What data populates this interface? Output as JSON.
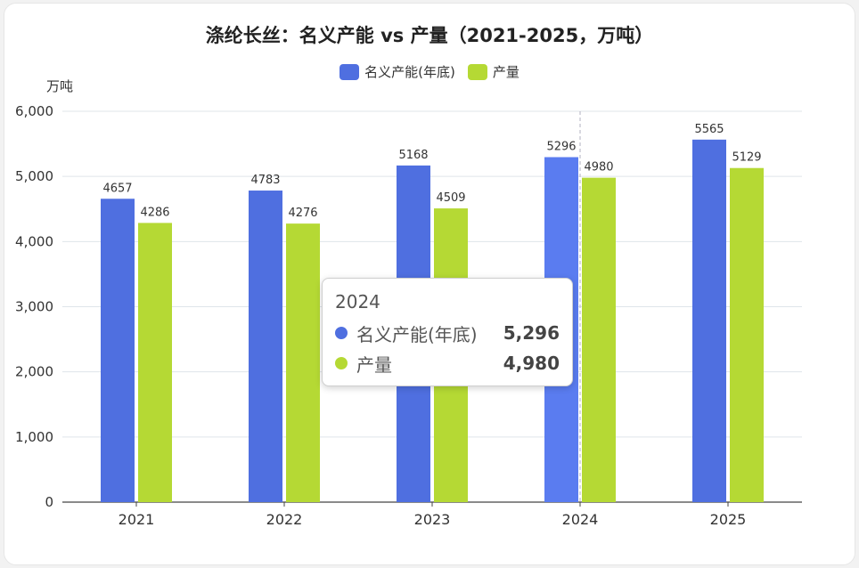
{
  "chart_data": {
    "type": "bar",
    "title": "涤纶长丝：名义产能 vs 产量（2021-2025，万吨）",
    "ylabel": "万吨",
    "categories": [
      "2021",
      "2022",
      "2023",
      "2024",
      "2025"
    ],
    "series": [
      {
        "name": "名义产能(年底)",
        "values": [
          4657,
          4783,
          5168,
          5296,
          5565
        ],
        "color": "#4f6fe0"
      },
      {
        "name": "产量",
        "values": [
          4286,
          4276,
          4509,
          4980,
          5129
        ],
        "color": "#b5d934"
      }
    ],
    "ylim": [
      0,
      6000
    ],
    "yticks": [
      "0",
      "1,000",
      "2,000",
      "3,000",
      "4,000",
      "5,000",
      "6,000"
    ],
    "grid": true,
    "legend": "top-center"
  },
  "tooltip": {
    "title": "2024",
    "rows": [
      {
        "name": "名义产能(年底)",
        "value": "5,296",
        "color": "#4f6fe0"
      },
      {
        "name": "产量",
        "value": "4,980",
        "color": "#b5d934"
      }
    ]
  }
}
